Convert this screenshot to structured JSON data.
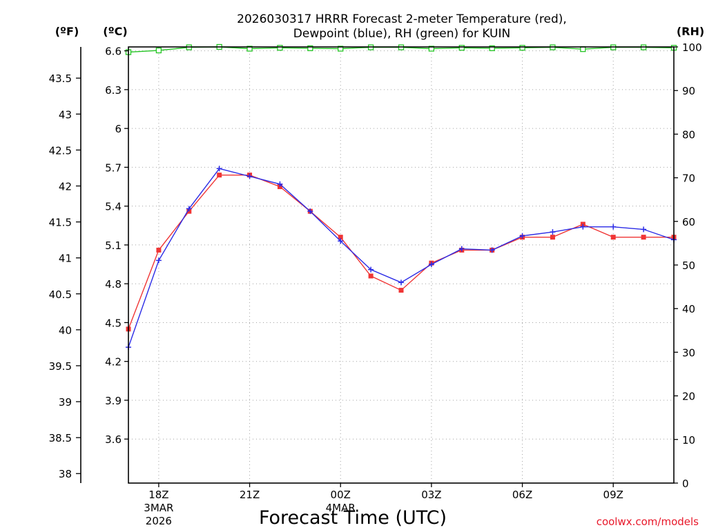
{
  "chart_data": {
    "type": "line",
    "title": "2026030317 HRRR Forecast 2-meter Temperature (red),",
    "title_line2": "Dewpoint (blue), RH (green) for KUIN",
    "xlabel": "Forecast Time (UTC)",
    "credit": "coolwx.com/models",
    "units": {
      "fahrenheit": "(ºF)",
      "celsius": "(ºC)",
      "rh": "(RH)"
    },
    "x_ticks": [
      {
        "hour": 1,
        "label": "18Z",
        "sub1": "3MAR",
        "sub2": "2026"
      },
      {
        "hour": 4,
        "label": "21Z",
        "sub1": "",
        "sub2": ""
      },
      {
        "hour": 7,
        "label": "00Z",
        "sub1": "4MAR",
        "sub2": ""
      },
      {
        "hour": 10,
        "label": "03Z",
        "sub1": "",
        "sub2": ""
      },
      {
        "hour": 13,
        "label": "06Z",
        "sub1": "",
        "sub2": ""
      },
      {
        "hour": 16,
        "label": "09Z",
        "sub1": "",
        "sub2": ""
      }
    ],
    "x_range": [
      0,
      18
    ],
    "celsius_range": [
      3.26,
      6.63
    ],
    "celsius_ticks": [
      "3.6",
      "3.9",
      "4.2",
      "4.5",
      "4.8",
      "5.1",
      "5.4",
      "5.7",
      "6",
      "6.3",
      "6.6"
    ],
    "fahrenheit_ticks": [
      "38",
      "38.5",
      "39",
      "39.5",
      "40",
      "40.5",
      "41",
      "41.5",
      "42",
      "42.5",
      "43",
      "43.5"
    ],
    "rh_range": [
      0,
      100
    ],
    "rh_ticks": [
      "0",
      "10",
      "20",
      "30",
      "40",
      "50",
      "60",
      "70",
      "80",
      "90",
      "100"
    ],
    "series": [
      {
        "name": "Temperature (red)",
        "color": "#f03535",
        "marker": "filled-square",
        "axis": "celsius",
        "values": [
          4.45,
          5.06,
          5.36,
          5.64,
          5.64,
          5.55,
          5.36,
          5.16,
          4.86,
          4.75,
          4.96,
          5.06,
          5.06,
          5.16,
          5.16,
          5.26,
          5.16,
          5.16,
          5.16
        ]
      },
      {
        "name": "Dewpoint (blue)",
        "color": "#2b2be6",
        "marker": "plus",
        "axis": "celsius",
        "values": [
          4.31,
          4.98,
          5.38,
          5.69,
          5.63,
          5.57,
          5.36,
          5.13,
          4.91,
          4.81,
          4.95,
          5.07,
          5.06,
          5.17,
          5.2,
          5.24,
          5.24,
          5.22,
          5.14
        ]
      },
      {
        "name": "RH (green)",
        "color": "#22c422",
        "marker": "open-square",
        "axis": "rh",
        "values": [
          98.8,
          99.2,
          99.9,
          100,
          99.6,
          99.8,
          99.7,
          99.6,
          99.9,
          99.9,
          99.6,
          99.8,
          99.7,
          99.8,
          99.9,
          99.5,
          99.9,
          99.9,
          99.8
        ]
      }
    ]
  }
}
